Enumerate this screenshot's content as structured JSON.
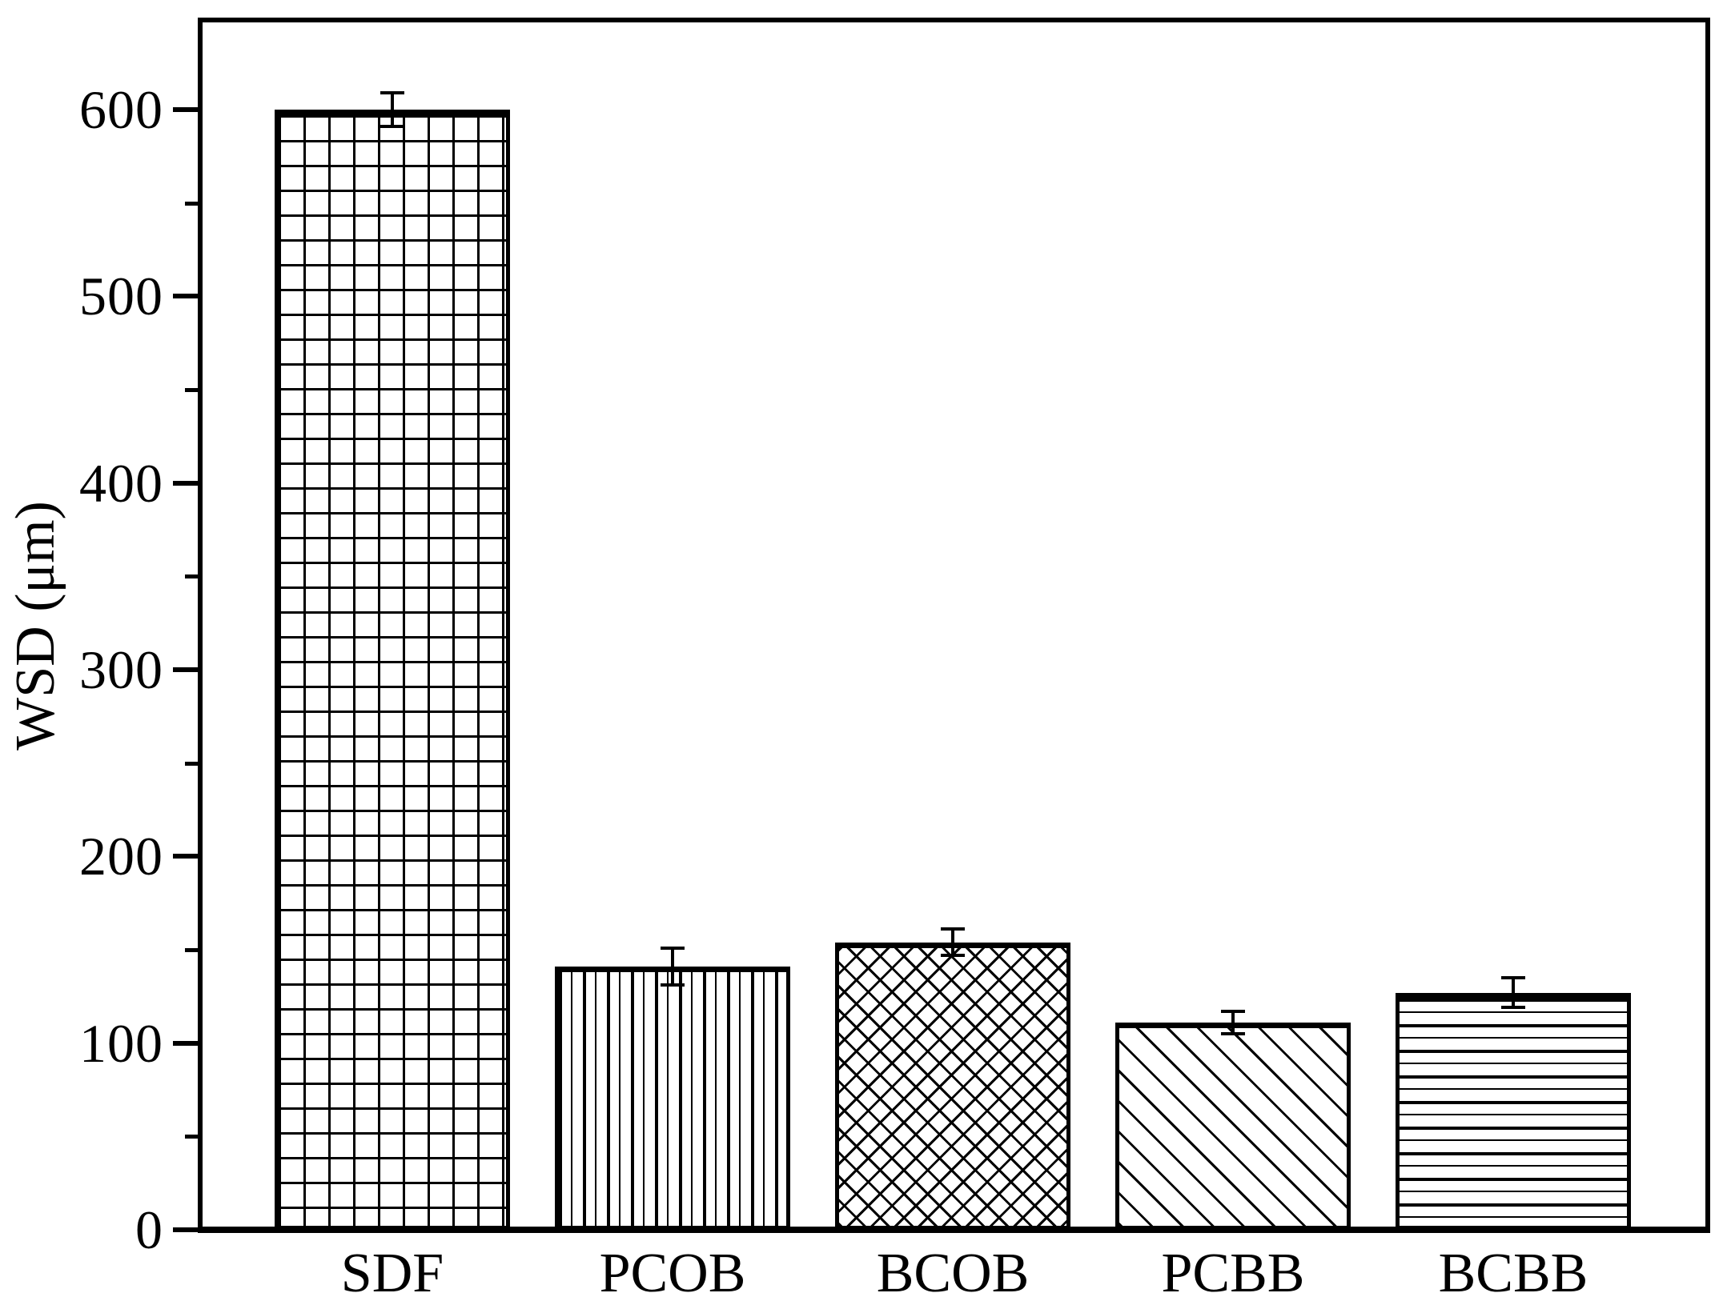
{
  "figure": {
    "background": "#ffffff",
    "ink": "#000000"
  },
  "chart_data": {
    "type": "bar",
    "title": "",
    "xlabel": "",
    "ylabel": "WSD (μm)",
    "categories": [
      "SDF",
      "PCOB",
      "BCOB",
      "PCBB",
      "BCBB"
    ],
    "values": [
      600,
      141,
      154,
      111,
      127
    ],
    "errors": [
      9,
      10,
      7,
      6,
      8
    ],
    "bar_patterns": [
      "grid",
      "vertical-lines",
      "diagonal-crosshatch",
      "diagonal-lines",
      "horizontal-lines"
    ],
    "bar_fill": "#ffffff",
    "bar_edge": "#000000",
    "ylim": [
      0,
      648
    ],
    "yticks_major": [
      0,
      100,
      200,
      300,
      400,
      500,
      600
    ],
    "ytick_minor_step": 50,
    "grid": "off",
    "legend": "none",
    "frame": "box",
    "tick_direction": "out"
  }
}
